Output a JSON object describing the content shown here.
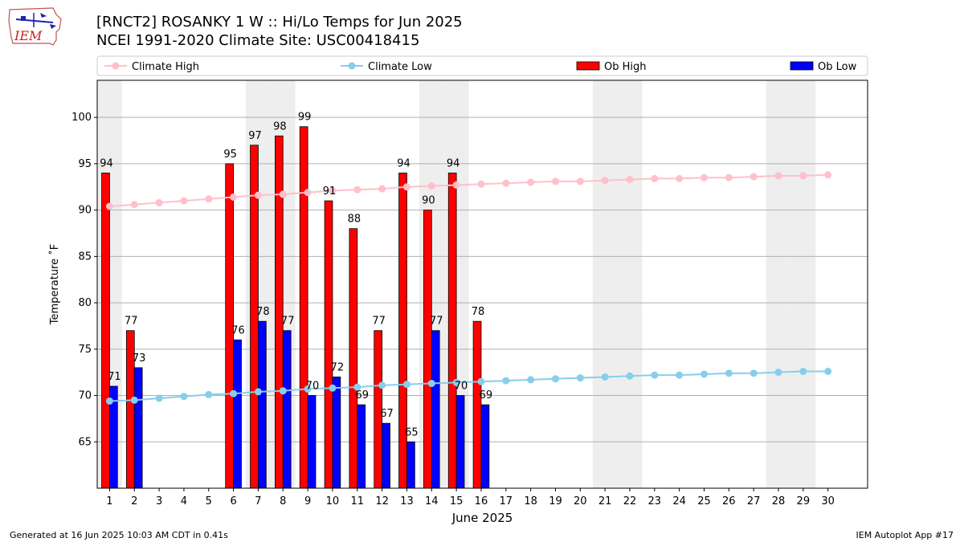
{
  "header": {
    "title_line1": "[RNCT2] ROSANKY 1 W :: Hi/Lo Temps for Jun 2025",
    "title_line2": "NCEI 1991-2020 Climate Site: USC00418415",
    "logo_text": "IEM"
  },
  "footer": {
    "left": "Generated at 16 Jun 2025 10:03 AM CDT in 0.41s",
    "right": "IEM Autoplot App #17"
  },
  "colors": {
    "ob_high": "#ff0000",
    "ob_low": "#0000ff",
    "climate_high": "#ffc0cb",
    "climate_low": "#87ceeb",
    "weekend_shade": "#eeeeee"
  },
  "chart_data": {
    "type": "bar",
    "title": "[RNCT2] ROSANKY 1 W :: Hi/Lo Temps for Jun 2025",
    "subtitle": "NCEI 1991-2020 Climate Site: USC00418415",
    "xlabel": "June 2025",
    "ylabel": "Temperature ˚F",
    "ylim": [
      60,
      104
    ],
    "yticks": [
      65,
      70,
      75,
      80,
      85,
      90,
      95,
      100
    ],
    "x": [
      1,
      2,
      3,
      4,
      5,
      6,
      7,
      8,
      9,
      10,
      11,
      12,
      13,
      14,
      15,
      16,
      17,
      18,
      19,
      20,
      21,
      22,
      23,
      24,
      25,
      26,
      27,
      28,
      29,
      30
    ],
    "grid": "horizontal",
    "legend_position": "top",
    "shaded_days": [
      1,
      7,
      8,
      14,
      15,
      21,
      22,
      28,
      29
    ],
    "series": [
      {
        "name": "Climate High",
        "kind": "line",
        "values": [
          90.4,
          90.6,
          90.8,
          91.0,
          91.2,
          91.4,
          91.6,
          91.7,
          91.9,
          92.1,
          92.2,
          92.3,
          92.5,
          92.6,
          92.7,
          92.8,
          92.9,
          93.0,
          93.1,
          93.1,
          93.2,
          93.3,
          93.4,
          93.4,
          93.5,
          93.5,
          93.6,
          93.7,
          93.7,
          93.8
        ]
      },
      {
        "name": "Climate Low",
        "kind": "line",
        "values": [
          69.4,
          69.5,
          69.7,
          69.9,
          70.1,
          70.2,
          70.4,
          70.5,
          70.7,
          70.8,
          70.9,
          71.1,
          71.2,
          71.3,
          71.4,
          71.5,
          71.6,
          71.7,
          71.8,
          71.9,
          72.0,
          72.1,
          72.2,
          72.2,
          72.3,
          72.4,
          72.4,
          72.5,
          72.6,
          72.6
        ]
      },
      {
        "name": "Ob High",
        "kind": "bar",
        "values": [
          94,
          77,
          null,
          null,
          null,
          95,
          97,
          98,
          99,
          91,
          88,
          77,
          94,
          90,
          94,
          78,
          null,
          null,
          null,
          null,
          null,
          null,
          null,
          null,
          null,
          null,
          null,
          null,
          null,
          null
        ],
        "labels": [
          "94",
          "77",
          null,
          null,
          null,
          "95",
          "97",
          "98",
          "99",
          "91",
          "88",
          "77",
          "94",
          "90",
          "94",
          "78",
          null,
          null,
          null,
          null,
          null,
          null,
          null,
          null,
          null,
          null,
          null,
          null,
          null,
          null
        ]
      },
      {
        "name": "Ob Low",
        "kind": "bar",
        "values": [
          71,
          73,
          null,
          null,
          null,
          76,
          78,
          77,
          70,
          72,
          69,
          67,
          65,
          77,
          70,
          69,
          null,
          null,
          null,
          null,
          null,
          null,
          null,
          null,
          null,
          null,
          null,
          null,
          null,
          null
        ],
        "labels": [
          "71",
          "73",
          null,
          null,
          null,
          "76",
          "78",
          "77",
          "70",
          "72",
          "69",
          "67",
          "65",
          "77",
          "70",
          "69",
          null,
          null,
          null,
          null,
          null,
          null,
          null,
          null,
          null,
          null,
          null,
          null,
          null,
          null
        ]
      }
    ]
  }
}
